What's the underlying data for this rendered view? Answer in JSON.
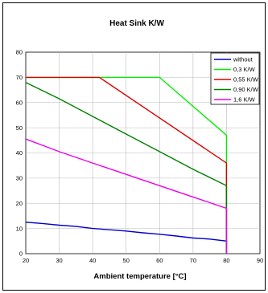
{
  "chart_data": {
    "type": "line",
    "title": "Heat Sink K/W",
    "xlabel": "Ambient temperature [°C]",
    "ylabel": "",
    "xlim": [
      20,
      90
    ],
    "ylim": [
      0,
      80
    ],
    "xticks": [
      "20",
      "30",
      "40",
      "50",
      "60",
      "70",
      "80",
      "90"
    ],
    "yticks": [
      "0",
      "10",
      "20",
      "30",
      "40",
      "50",
      "60",
      "70",
      "80"
    ],
    "grid": true,
    "legend_position": "top-right",
    "series": [
      {
        "name": "without",
        "color": "#0000cc",
        "points": [
          [
            20,
            12.5
          ],
          [
            25,
            12
          ],
          [
            30,
            11.3
          ],
          [
            35,
            10.8
          ],
          [
            40,
            10
          ],
          [
            45,
            9.5
          ],
          [
            50,
            9
          ],
          [
            55,
            8.3
          ],
          [
            60,
            7.7
          ],
          [
            65,
            7
          ],
          [
            70,
            6.2
          ],
          [
            75,
            5.8
          ],
          [
            80,
            5
          ],
          [
            80,
            0
          ]
        ]
      },
      {
        "name": "0,3 K/W",
        "color": "#00ee00",
        "points": [
          [
            20,
            70
          ],
          [
            60,
            70
          ],
          [
            80,
            47
          ],
          [
            80,
            0
          ]
        ]
      },
      {
        "name": "0,55 K/W",
        "color": "#dd0000",
        "points": [
          [
            20,
            70
          ],
          [
            42,
            70
          ],
          [
            80,
            36
          ],
          [
            80,
            0
          ]
        ]
      },
      {
        "name": "0,90 K/W",
        "color": "#008000",
        "points": [
          [
            20,
            68
          ],
          [
            30,
            61.5
          ],
          [
            40,
            54.5
          ],
          [
            50,
            47.5
          ],
          [
            60,
            40.5
          ],
          [
            70,
            33.5
          ],
          [
            80,
            27
          ],
          [
            80,
            0
          ]
        ]
      },
      {
        "name": "1,6 K/W",
        "color": "#ee00ee",
        "points": [
          [
            20,
            45.5
          ],
          [
            30,
            40.5
          ],
          [
            40,
            36
          ],
          [
            50,
            31.5
          ],
          [
            60,
            27
          ],
          [
            70,
            22.5
          ],
          [
            80,
            18
          ],
          [
            80,
            0
          ]
        ]
      }
    ]
  }
}
